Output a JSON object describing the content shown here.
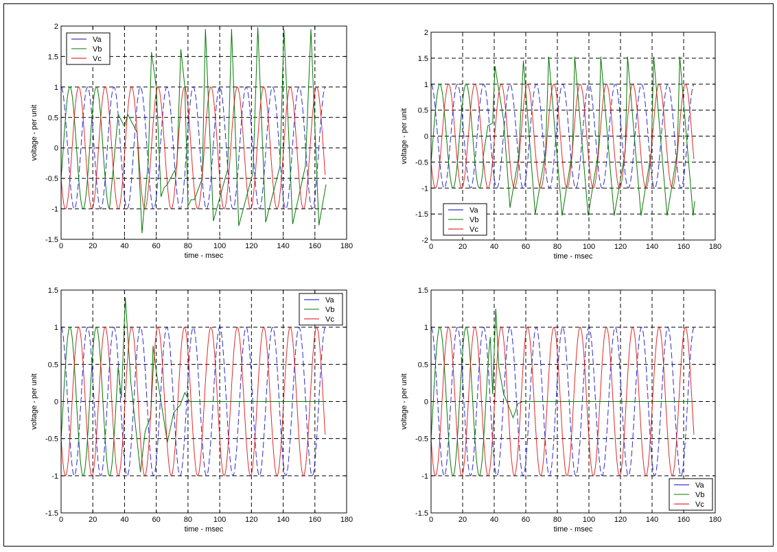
{
  "chart_data": [
    {
      "type": "line",
      "xlabel": "time - msec",
      "ylabel": "voltage - per unit",
      "xlim": [
        0,
        180
      ],
      "ylim": [
        -1.5,
        2
      ],
      "xticks": [
        0,
        20,
        40,
        60,
        80,
        100,
        120,
        140,
        160,
        180
      ],
      "yticks": [
        -1.5,
        -1,
        -0.5,
        0,
        0.5,
        1,
        1.5,
        2
      ],
      "grid": true,
      "legend": "top-left",
      "series": [
        {
          "name": "Va",
          "color": "#0000cc",
          "style": "dashed",
          "model": "sinusoid",
          "amplitude": 1,
          "frequency_hz": 60,
          "phase_deg": 0,
          "t_end": 166.7
        },
        {
          "name": "Vb",
          "color": "#007700",
          "style": "solid",
          "model": "sinusoid",
          "amplitude": 1,
          "frequency_hz": 60,
          "phase_deg": -120,
          "sinusoid_until": 30.5,
          "points": [
            [
              30.5,
              -1
            ],
            [
              36,
              0.55
            ],
            [
              40,
              0.35
            ],
            [
              42,
              0.55
            ],
            [
              48,
              0.25
            ],
            [
              51,
              -1.4
            ],
            [
              55,
              -0.2
            ],
            [
              57,
              1.57
            ],
            [
              60,
              1.0
            ],
            [
              63,
              -0.8
            ],
            [
              65,
              -0.65
            ],
            [
              67,
              -0.6
            ],
            [
              73,
              -0.3
            ],
            [
              75.5,
              1.62
            ],
            [
              78,
              1.0
            ],
            [
              80,
              -0.95
            ],
            [
              82,
              -0.85
            ],
            [
              84,
              -0.85
            ],
            [
              89,
              -0.5
            ],
            [
              91,
              1.95
            ],
            [
              96,
              -1.2
            ],
            [
              105,
              -0.35
            ],
            [
              107.5,
              1.95
            ],
            [
              112,
              -1.28
            ],
            [
              121,
              -0.4
            ],
            [
              124,
              1.98
            ],
            [
              129,
              -1.22
            ],
            [
              138,
              -0.3
            ],
            [
              140.5,
              1.95
            ],
            [
              146,
              -1.25
            ],
            [
              154,
              -0.3
            ],
            [
              157.5,
              1.95
            ],
            [
              162.5,
              -1.27
            ],
            [
              167,
              -0.6
            ]
          ]
        },
        {
          "name": "Vc",
          "color": "#dd0000",
          "style": "solid",
          "model": "sinusoid",
          "amplitude": 1,
          "frequency_hz": 60,
          "phase_deg": 120,
          "t_end": 166.7
        }
      ]
    },
    {
      "type": "line",
      "xlabel": "time - msec",
      "ylabel": "voltage - per unit",
      "xlim": [
        0,
        180
      ],
      "ylim": [
        -2,
        2
      ],
      "xticks": [
        0,
        20,
        40,
        60,
        80,
        100,
        120,
        140,
        160,
        180
      ],
      "yticks": [
        -2,
        -1.5,
        -1,
        -0.5,
        0,
        0.5,
        1,
        1.5,
        2
      ],
      "grid": true,
      "legend": "bottom-left",
      "series": [
        {
          "name": "Va",
          "color": "#0000cc",
          "style": "dashed",
          "model": "sinusoid",
          "amplitude": 1,
          "frequency_hz": 60,
          "phase_deg": 0,
          "t_end": 166.7
        },
        {
          "name": "Vb",
          "color": "#007700",
          "style": "solid",
          "model": "sinusoid",
          "amplitude": 1,
          "frequency_hz": 60,
          "phase_deg": -120,
          "sinusoid_until": 33,
          "points": [
            [
              33,
              -0.4
            ],
            [
              36,
              0.2
            ],
            [
              39,
              0.25
            ],
            [
              40.5,
              1.35
            ],
            [
              46,
              0.3
            ],
            [
              50,
              -1.38
            ],
            [
              55.5,
              -0.4
            ],
            [
              58.5,
              1.45
            ],
            [
              66,
              -1.5
            ],
            [
              72.5,
              -0.3
            ],
            [
              74.5,
              1.53
            ],
            [
              83,
              -1.53
            ],
            [
              89.5,
              -0.3
            ],
            [
              91,
              1.53
            ],
            [
              99.5,
              -1.53
            ],
            [
              106,
              -0.3
            ],
            [
              107.5,
              1.53
            ],
            [
              116,
              -1.53
            ],
            [
              123,
              -0.3
            ],
            [
              124.5,
              1.53
            ],
            [
              133,
              -1.53
            ],
            [
              139.5,
              -0.3
            ],
            [
              141,
              1.53
            ],
            [
              149.5,
              -1.53
            ],
            [
              156,
              -0.3
            ],
            [
              157.5,
              1.53
            ],
            [
              166,
              -1.53
            ],
            [
              167,
              -1.25
            ]
          ]
        },
        {
          "name": "Vc",
          "color": "#dd0000",
          "style": "solid",
          "model": "sinusoid",
          "amplitude": 1,
          "frequency_hz": 60,
          "phase_deg": 120,
          "t_end": 166.7
        }
      ]
    },
    {
      "type": "line",
      "xlabel": "time - msec",
      "ylabel": "voltage - per unit",
      "xlim": [
        0,
        180
      ],
      "ylim": [
        -1.5,
        1.5
      ],
      "xticks": [
        0,
        20,
        40,
        60,
        80,
        100,
        120,
        140,
        160,
        180
      ],
      "yticks": [
        -1.5,
        -1,
        -0.5,
        0,
        0.5,
        1,
        1.5
      ],
      "grid": true,
      "legend": "top-right",
      "series": [
        {
          "name": "Va",
          "color": "#0000cc",
          "style": "dashed",
          "model": "sinusoid",
          "amplitude": 1,
          "frequency_hz": 60,
          "phase_deg": 0,
          "t_end": 166.7
        },
        {
          "name": "Vb",
          "color": "#007700",
          "style": "solid",
          "model": "sinusoid",
          "amplitude": 1,
          "frequency_hz": 60,
          "phase_deg": -120,
          "sinusoid_until": 36,
          "points": [
            [
              38,
              0.05
            ],
            [
              40.5,
              1.4
            ],
            [
              44,
              0.25
            ],
            [
              50,
              -0.95
            ],
            [
              53,
              -0.4
            ],
            [
              56.5,
              -0.2
            ],
            [
              58,
              0.75
            ],
            [
              60,
              0.4
            ],
            [
              63,
              0.0
            ],
            [
              67,
              -0.55
            ],
            [
              71,
              -0.15
            ],
            [
              75,
              -0.05
            ],
            [
              78,
              0.12
            ],
            [
              81,
              0.0
            ],
            [
              166,
              0.0
            ]
          ]
        },
        {
          "name": "Vc",
          "color": "#dd0000",
          "style": "solid",
          "model": "sinusoid",
          "amplitude": 1,
          "frequency_hz": 60,
          "phase_deg": 120,
          "t_end": 166.7
        }
      ]
    },
    {
      "type": "line",
      "xlabel": "time - msec",
      "ylabel": "voltage - per unit",
      "xlim": [
        0,
        180
      ],
      "ylim": [
        -1.5,
        1.5
      ],
      "xticks": [
        0,
        20,
        40,
        60,
        80,
        100,
        120,
        140,
        160,
        180
      ],
      "yticks": [
        -1.5,
        -1,
        -0.5,
        0,
        0.5,
        1,
        1.5
      ],
      "grid": true,
      "legend": "bottom-right",
      "series": [
        {
          "name": "Va",
          "color": "#0000cc",
          "style": "dashed",
          "model": "sinusoid",
          "amplitude": 1,
          "frequency_hz": 60,
          "phase_deg": 0,
          "t_end": 166.7
        },
        {
          "name": "Vb",
          "color": "#007700",
          "style": "solid",
          "model": "sinusoid",
          "amplitude": 1,
          "frequency_hz": 60,
          "phase_deg": -120,
          "sinusoid_until": 37.5,
          "points": [
            [
              39,
              0.1
            ],
            [
              41,
              1.25
            ],
            [
              43,
              0.45
            ],
            [
              46,
              0.1
            ],
            [
              48,
              0.0
            ],
            [
              52,
              -0.22
            ],
            [
              55,
              -0.03
            ],
            [
              58,
              0.0
            ],
            [
              166,
              0.0
            ]
          ]
        },
        {
          "name": "Vc",
          "color": "#dd0000",
          "style": "solid",
          "model": "sinusoid",
          "amplitude": 1,
          "frequency_hz": 60,
          "phase_deg": 120,
          "t_end": 166.7
        }
      ]
    }
  ]
}
